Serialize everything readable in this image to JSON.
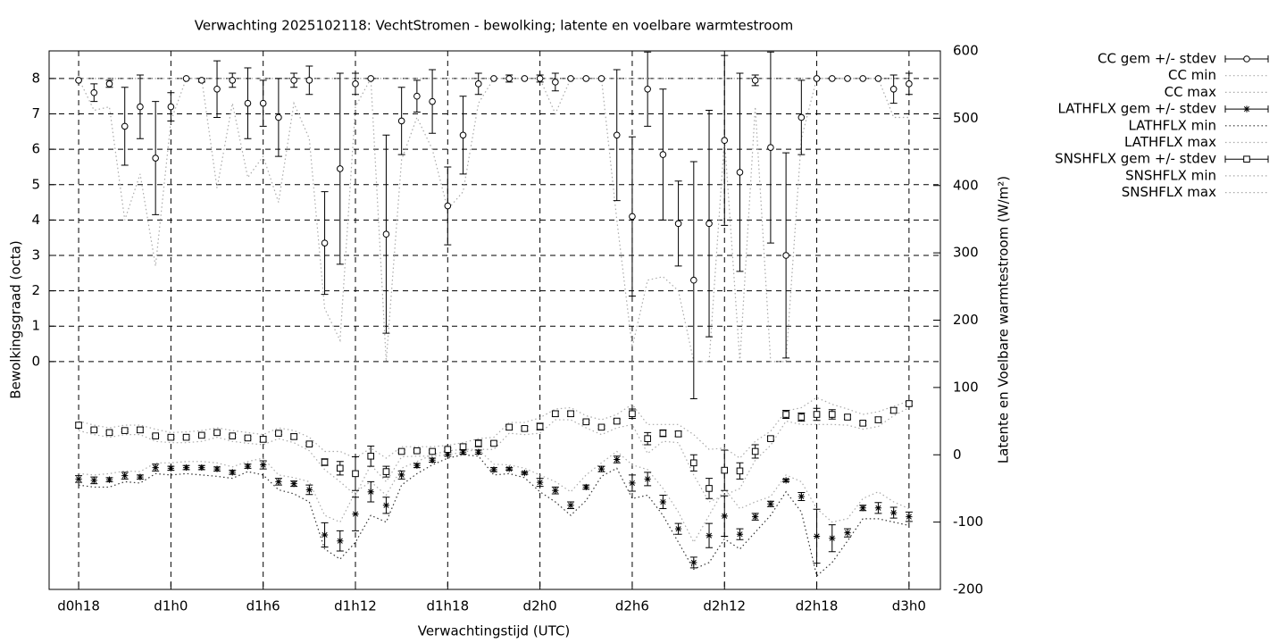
{
  "chart_data": {
    "type": "errorbar-line",
    "title": "Verwachting 2025102118: VechtStromen - bewolking; latente en voelbare warmtestroom",
    "xlabel": "Verwachtingstijd (UTC)",
    "ylabel": "Bewolkingsgraad (octa)",
    "y2label": "Latente en Voelbare warmtestroom (W/m²)",
    "grid": true,
    "legend": "outside-top-right",
    "xlim": [
      16.08,
      74.04
    ],
    "xticks": [
      {
        "value": 18,
        "label": "d0h18"
      },
      {
        "value": 24,
        "label": "d1h0"
      },
      {
        "value": 30,
        "label": "d1h6"
      },
      {
        "value": 36,
        "label": "d1h12"
      },
      {
        "value": 42,
        "label": "d1h18"
      },
      {
        "value": 48,
        "label": "d2h0"
      },
      {
        "value": 54,
        "label": "d2h6"
      },
      {
        "value": 60,
        "label": "d2h12"
      },
      {
        "value": 66,
        "label": "d2h18"
      },
      {
        "value": 72,
        "label": "d3h0"
      }
    ],
    "ylim": [
      -6.44,
      8.78
    ],
    "yticks": [
      0,
      1,
      2,
      3,
      4,
      5,
      6,
      7,
      8
    ],
    "y2lim": [
      -200,
      600
    ],
    "y2ticks": [
      -200,
      -100,
      0,
      100,
      200,
      300,
      400,
      500,
      600
    ],
    "x": [
      18,
      19,
      20,
      21,
      22,
      23,
      24,
      25,
      26,
      27,
      28,
      29,
      30,
      31,
      32,
      33,
      34,
      35,
      36,
      37,
      38,
      39,
      40,
      41,
      42,
      43,
      44,
      45,
      46,
      47,
      48,
      49,
      50,
      51,
      52,
      53,
      54,
      55,
      56,
      57,
      58,
      59,
      60,
      61,
      62,
      63,
      64,
      65,
      66,
      67,
      68,
      69,
      70,
      71,
      72
    ],
    "series": [
      {
        "name": "CC gem +/- stdev",
        "axis": "y",
        "style": "errorbar",
        "marker": "circle",
        "color": "#000000",
        "values": [
          7.95,
          7.6,
          7.85,
          6.65,
          7.2,
          5.75,
          7.2,
          8.0,
          7.95,
          7.7,
          7.95,
          7.3,
          7.3,
          6.9,
          7.95,
          7.95,
          3.35,
          5.45,
          7.85,
          8.0,
          3.6,
          6.8,
          7.5,
          7.35,
          4.4,
          6.4,
          7.85,
          8.0,
          8.0,
          8.0,
          8.0,
          7.9,
          8.0,
          8.0,
          8.0,
          6.4,
          4.1,
          7.7,
          5.85,
          3.9,
          2.3,
          3.9,
          6.25,
          5.35,
          7.95,
          6.05,
          3.0,
          6.9,
          8.0,
          8.0,
          8.0,
          8.0,
          8.0,
          7.7,
          7.85
        ],
        "errors": [
          0,
          0.25,
          0.1,
          1.1,
          0.9,
          1.6,
          0.4,
          0,
          0.05,
          0.8,
          0.2,
          1.0,
          0.65,
          1.1,
          0.2,
          0.4,
          1.45,
          2.7,
          0.3,
          0,
          2.8,
          0.95,
          0.45,
          0.9,
          1.1,
          1.1,
          0.3,
          0,
          0.1,
          0,
          0.1,
          0.25,
          0,
          0,
          0,
          1.85,
          2.25,
          1.05,
          1.85,
          1.2,
          3.35,
          3.2,
          2.4,
          2.8,
          0.15,
          2.7,
          2.9,
          1.05,
          0,
          0,
          0,
          0,
          0,
          0.4,
          0.3
        ]
      },
      {
        "name": "CC min",
        "axis": "y",
        "style": "dotted",
        "color": "#aaaaaa",
        "values": [
          8,
          7.1,
          7.2,
          4.0,
          5.3,
          2.7,
          6.8,
          8,
          8,
          4.9,
          7.3,
          5.2,
          5.8,
          4.5,
          7.3,
          6.3,
          1.5,
          0.6,
          7.2,
          8,
          0,
          5.7,
          6.9,
          6.0,
          4.3,
          4.8,
          7.3,
          8,
          8,
          8,
          8,
          7.0,
          8,
          8,
          8,
          4.0,
          0.4,
          2.3,
          2.4,
          2.0,
          0,
          0,
          6.3,
          0,
          7.2,
          0,
          0,
          6.3,
          8,
          8,
          8,
          8,
          8,
          6.9,
          6.9
        ]
      },
      {
        "name": "CC max",
        "axis": "y",
        "style": "dotted",
        "color": "#aaaaaa",
        "values": [
          8,
          8,
          8,
          8,
          8,
          8,
          8,
          8,
          8,
          8,
          8,
          8,
          8,
          8,
          8,
          8,
          8,
          8,
          8,
          8,
          8,
          8,
          8,
          8,
          8,
          8,
          8,
          8,
          8,
          8,
          8,
          8,
          8,
          8,
          8,
          8,
          8,
          8,
          8,
          8,
          8,
          8,
          8,
          8,
          8,
          8,
          8,
          8,
          8,
          8,
          8,
          8,
          8,
          8,
          8
        ]
      },
      {
        "name": "LATHFLX gem +/- stdev",
        "axis": "y2",
        "style": "errorbar",
        "marker": "star",
        "color": "#000000",
        "values": [
          -36,
          -38,
          -37,
          -31,
          -33,
          -19,
          -20,
          -19,
          -19,
          -21,
          -26,
          -17,
          -15,
          -40,
          -43,
          -52,
          -119,
          -128,
          -88,
          -55,
          -75,
          -30,
          -16,
          -8,
          1,
          4,
          4,
          -22,
          -21,
          -27,
          -41,
          -53,
          -75,
          -48,
          -21,
          -7,
          -42,
          -36,
          -70,
          -110,
          -160,
          -120,
          -91,
          -118,
          -92,
          -73,
          -38,
          -62,
          -121,
          -124,
          -116,
          -79,
          -79,
          -86,
          -92
        ],
        "errors": [
          5,
          5,
          3,
          5,
          3,
          5,
          3,
          3,
          3,
          3,
          3,
          3,
          6,
          5,
          4,
          7,
          18,
          15,
          25,
          15,
          12,
          6,
          3,
          3,
          3,
          3,
          3,
          3,
          2,
          2,
          6,
          5,
          5,
          3,
          4,
          5,
          12,
          10,
          10,
          8,
          8,
          18,
          30,
          8,
          5,
          4,
          2,
          6,
          40,
          20,
          6,
          4,
          8,
          8,
          7
        ]
      },
      {
        "name": "LATHFLX min",
        "axis": "y2",
        "style": "dotted",
        "color": "#333333",
        "values": [
          -45,
          -48,
          -48,
          -40,
          -42,
          -28,
          -30,
          -28,
          -30,
          -32,
          -35,
          -25,
          -30,
          -52,
          -58,
          -70,
          -140,
          -155,
          -130,
          -90,
          -100,
          -45,
          -28,
          -15,
          -5,
          0,
          -2,
          -30,
          -28,
          -34,
          -55,
          -70,
          -90,
          -68,
          -32,
          -20,
          -65,
          -60,
          -90,
          -130,
          -170,
          -160,
          -125,
          -140,
          -115,
          -90,
          -55,
          -85,
          -180,
          -160,
          -128,
          -95,
          -95,
          -100,
          -105
        ]
      },
      {
        "name": "LATHFLX max",
        "axis": "y2",
        "style": "dotted",
        "color": "#aaaaaa",
        "values": [
          -28,
          -30,
          -28,
          -24,
          -25,
          -12,
          -12,
          -10,
          -10,
          -12,
          -18,
          -10,
          -5,
          -30,
          -34,
          -40,
          -90,
          -100,
          -55,
          -40,
          -60,
          -20,
          -10,
          0,
          6,
          8,
          8,
          -14,
          -15,
          -20,
          -30,
          -40,
          -55,
          -30,
          -12,
          5,
          -15,
          -22,
          -50,
          -85,
          -130,
          -90,
          -50,
          -80,
          -70,
          -62,
          -30,
          -40,
          -80,
          -100,
          -95,
          -65,
          -55,
          -70,
          -80
        ]
      },
      {
        "name": "SNSHFLX gem +/- stdev",
        "axis": "y2",
        "style": "errorbar",
        "marker": "square",
        "color": "#000000",
        "values": [
          44,
          37,
          33,
          36,
          37,
          28,
          26,
          26,
          29,
          33,
          28,
          25,
          23,
          32,
          27,
          16,
          -11,
          -20,
          -28,
          -2,
          -25,
          5,
          6,
          5,
          8,
          12,
          17,
          17,
          41,
          39,
          42,
          61,
          61,
          49,
          41,
          50,
          61,
          24,
          32,
          31,
          -12,
          -50,
          -23,
          -24,
          5,
          24,
          60,
          56,
          60,
          60,
          56,
          47,
          52,
          66,
          76
        ],
        "errors": [
          4,
          2,
          2,
          2,
          4,
          2,
          2,
          2,
          2,
          2,
          2,
          2,
          4,
          2,
          4,
          2,
          5,
          10,
          25,
          15,
          8,
          2,
          2,
          2,
          2,
          4,
          5,
          3,
          4,
          3,
          5,
          4,
          4,
          2,
          2,
          3,
          7,
          9,
          5,
          4,
          12,
          15,
          30,
          12,
          10,
          3,
          6,
          6,
          9,
          7,
          3,
          3,
          4,
          4,
          3
        ]
      },
      {
        "name": "SNSHFLX min",
        "axis": "y2",
        "style": "dotted",
        "color": "#aaaaaa",
        "values": [
          36,
          30,
          26,
          30,
          30,
          20,
          18,
          18,
          20,
          26,
          20,
          17,
          15,
          24,
          18,
          6,
          -22,
          -40,
          -60,
          -15,
          -40,
          -3,
          -2,
          -2,
          0,
          4,
          8,
          8,
          32,
          30,
          32,
          52,
          52,
          40,
          30,
          40,
          45,
          2,
          20,
          18,
          -30,
          -70,
          -60,
          -50,
          -8,
          14,
          50,
          45,
          45,
          45,
          44,
          38,
          42,
          58,
          70
        ]
      },
      {
        "name": "SNSHFLX max",
        "axis": "y2",
        "style": "dotted",
        "color": "#aaaaaa",
        "values": [
          50,
          44,
          40,
          44,
          44,
          38,
          33,
          34,
          36,
          40,
          36,
          33,
          30,
          40,
          36,
          26,
          5,
          5,
          -5,
          10,
          -5,
          12,
          12,
          12,
          14,
          18,
          24,
          26,
          48,
          48,
          55,
          68,
          70,
          58,
          52,
          60,
          75,
          45,
          45,
          45,
          30,
          8,
          10,
          -5,
          20,
          35,
          65,
          70,
          85,
          75,
          68,
          60,
          64,
          72,
          80
        ]
      }
    ]
  }
}
